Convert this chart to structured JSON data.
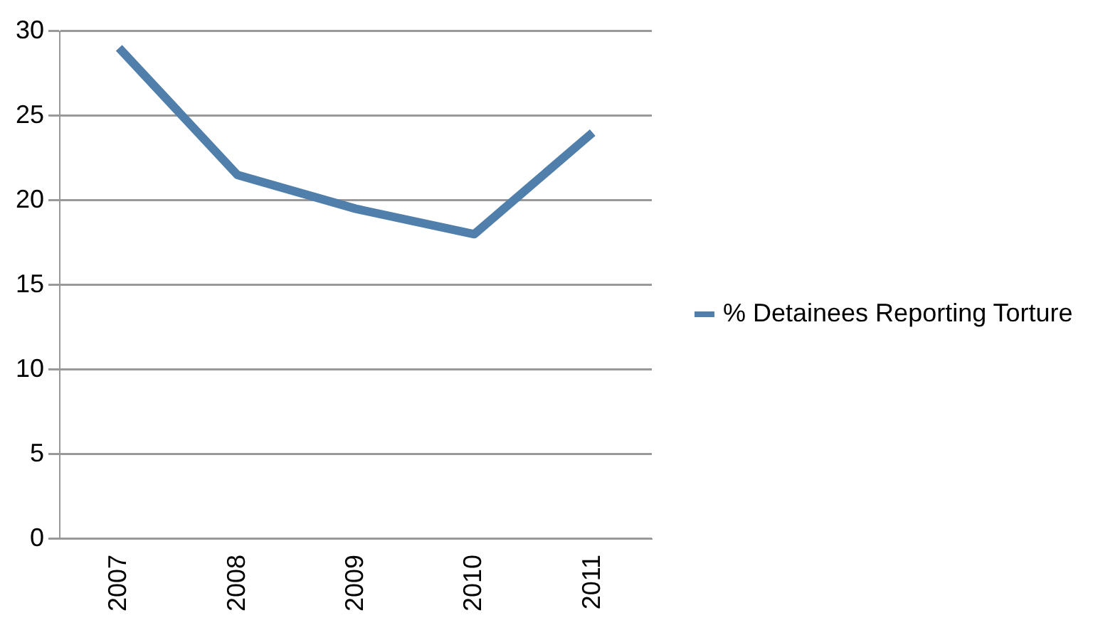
{
  "chart_data": {
    "type": "line",
    "categories": [
      "2007",
      "2008",
      "2009",
      "2010",
      "2011"
    ],
    "series": [
      {
        "name": "% Detainees Reporting Torture",
        "color": "#4f7faa",
        "values": [
          29,
          21.5,
          19.5,
          18,
          24
        ]
      }
    ],
    "ylim": [
      0,
      30
    ],
    "yticks": [
      0,
      5,
      10,
      15,
      20,
      25,
      30
    ],
    "grid": "y",
    "legend": "right",
    "marker": "none",
    "line_style": "solid"
  }
}
